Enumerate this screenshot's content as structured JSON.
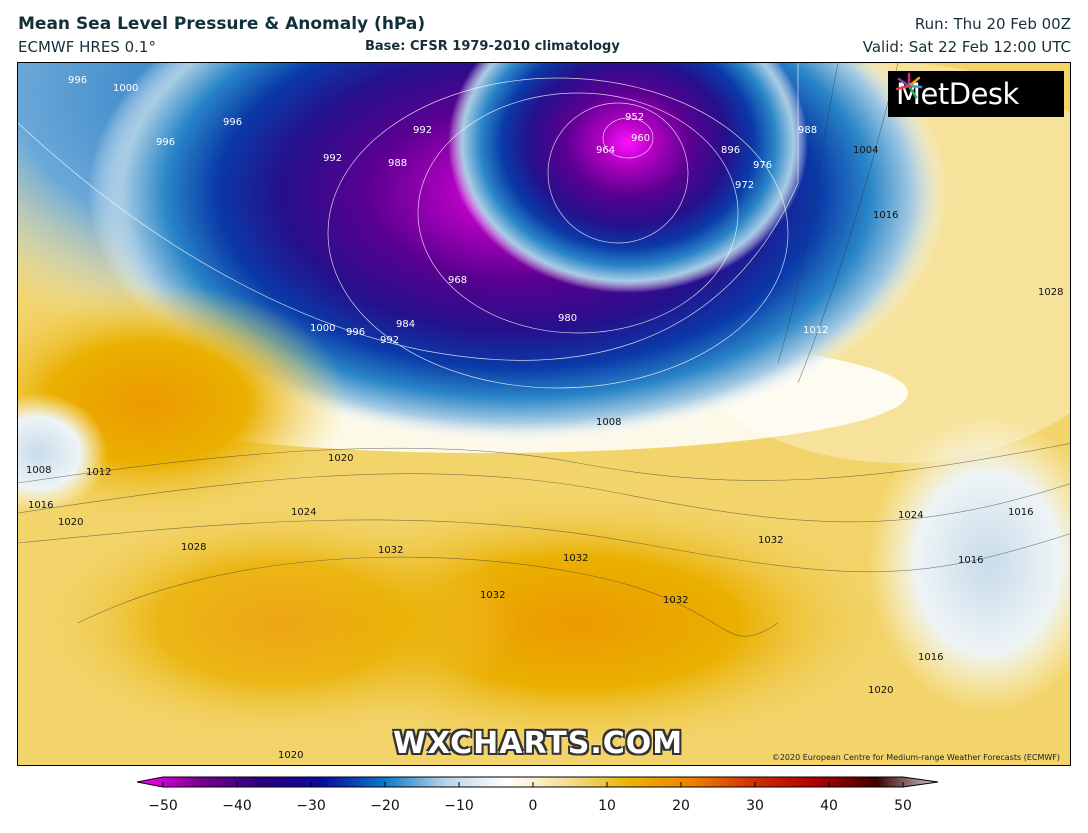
{
  "header": {
    "title": "Mean Sea Level Pressure & Anomaly (hPa)",
    "model": "ECMWF HRES 0.1°",
    "base": "Base: CFSR 1979-2010 climatology",
    "run": "Run: Thu 20 Feb 00Z",
    "valid": "Valid: Sat 22 Feb 12:00 UTC"
  },
  "map": {
    "logo_text": "MetDesk",
    "watermark": "WXCHARTS.COM",
    "copyright": "©2020 European Centre for Medium-range Weather Forecasts (ECMWF)",
    "isobar_labels": [
      "996",
      "1000",
      "996",
      "996",
      "992",
      "988",
      "992",
      "964",
      "960",
      "952",
      "896",
      "976",
      "972",
      "988",
      "1004",
      "968",
      "984",
      "992",
      "996",
      "1000",
      "980",
      "1016",
      "1012",
      "1028",
      "1008",
      "1008",
      "1012",
      "1016",
      "1020",
      "1020",
      "1024",
      "1028",
      "1032",
      "1032",
      "1032",
      "1032",
      "1032",
      "1024",
      "1016",
      "1016",
      "1016",
      "1020",
      "1020"
    ]
  },
  "colorbar": {
    "ticks": [
      "−50",
      "−40",
      "−30",
      "−20",
      "−10",
      "0",
      "10",
      "20",
      "30",
      "40",
      "50"
    ],
    "range": [
      -50,
      50
    ],
    "colors": [
      "#ff00ff",
      "#7a0090",
      "#2a0080",
      "#0a0aa0",
      "#0a78c8",
      "#b8d4e6",
      "#ffffff",
      "#f4de90",
      "#e8b400",
      "#f08000",
      "#d03000",
      "#b00000",
      "#400000",
      "#d0d0d0"
    ]
  }
}
